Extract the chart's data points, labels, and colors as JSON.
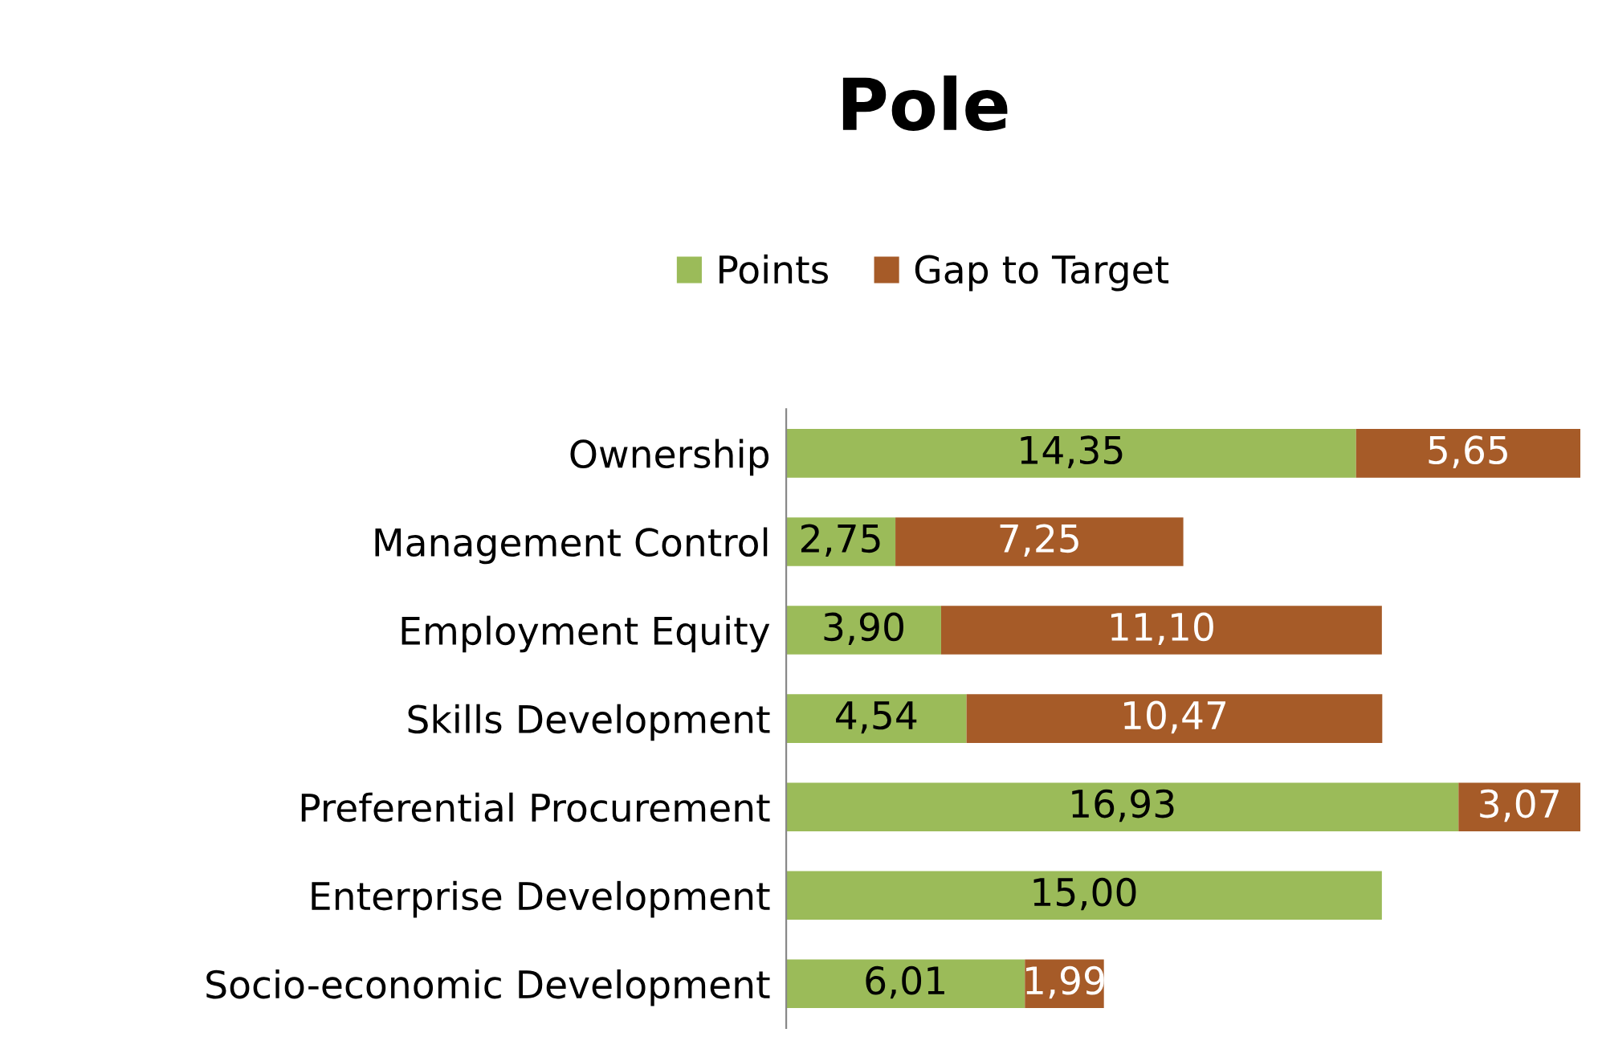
{
  "chart_data": {
    "type": "bar",
    "title": "Pole",
    "orientation": "horizontal",
    "stacked": true,
    "legend": "top",
    "grid": false,
    "tick_labels": "y",
    "categories": [
      "Ownership",
      "Management Control",
      "Employment Equity",
      "Skills Development",
      "Preferential Procurement",
      "Enterprise Development",
      "Socio-economic Development"
    ],
    "series": [
      {
        "name": "Points",
        "color": "#9bbb59",
        "values": [
          14.35,
          2.75,
          3.9,
          4.54,
          16.93,
          15.0,
          6.01
        ],
        "value_labels": [
          "14,35",
          "2,75",
          "3,90",
          "4,54",
          "16,93",
          "15,00",
          "6,01"
        ]
      },
      {
        "name": "Gap to Target",
        "color": "#a65b28",
        "values": [
          5.65,
          7.25,
          11.1,
          10.47,
          3.07,
          null,
          1.99
        ],
        "value_labels": [
          "5,65",
          "7,25",
          "11,10",
          "10,47",
          "3,07",
          null,
          "1,99"
        ]
      }
    ]
  }
}
